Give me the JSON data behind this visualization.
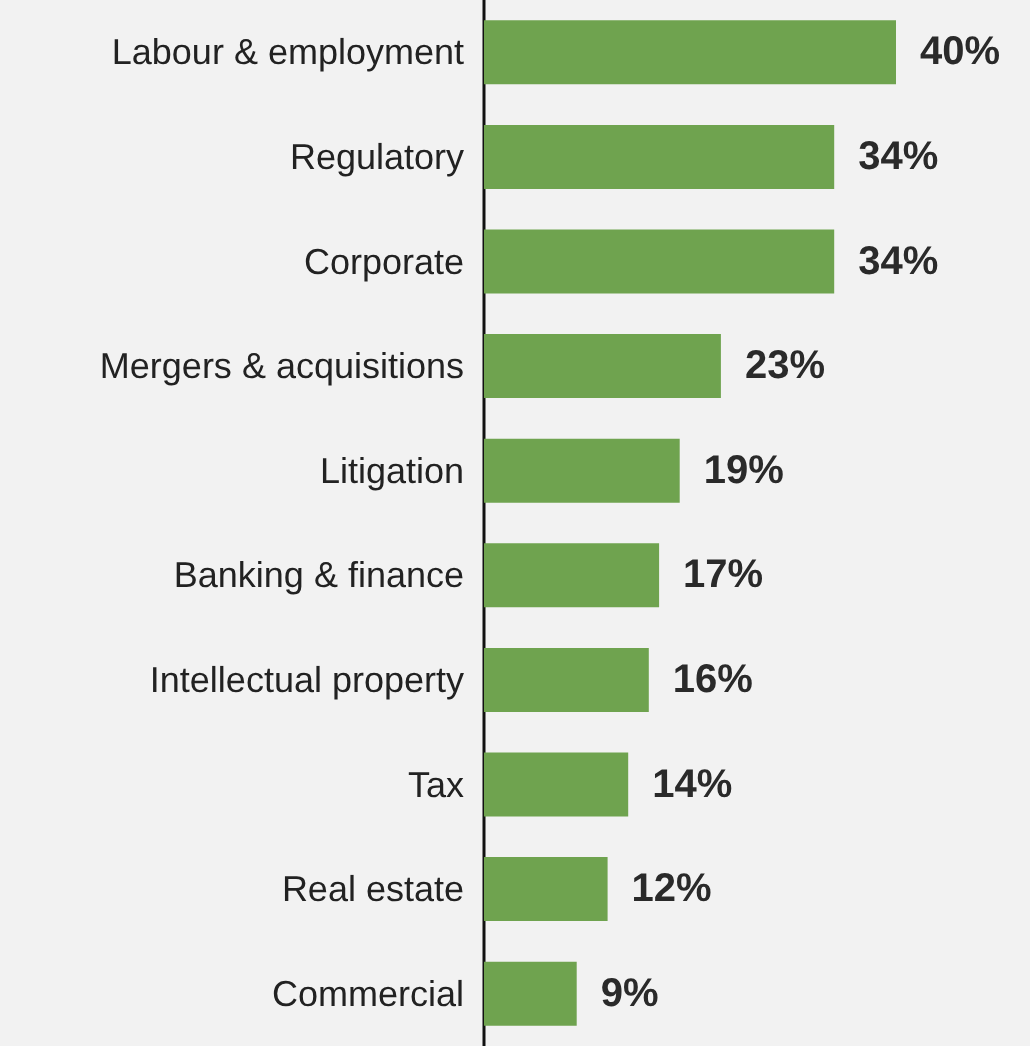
{
  "chart_data": {
    "type": "bar",
    "orientation": "horizontal",
    "categories": [
      "Labour & employment",
      "Regulatory",
      "Corporate",
      "Mergers & acquisitions",
      "Litigation",
      "Banking & finance",
      "Intellectual property",
      "Tax",
      "Real estate",
      "Commercial"
    ],
    "values": [
      40,
      34,
      34,
      23,
      19,
      17,
      16,
      14,
      12,
      9
    ],
    "color": "#6fa34f",
    "value_labels": [
      "40%",
      "34%",
      "34%",
      "23%",
      "19%",
      "17%",
      "16%",
      "14%",
      "12%",
      "9%"
    ]
  }
}
